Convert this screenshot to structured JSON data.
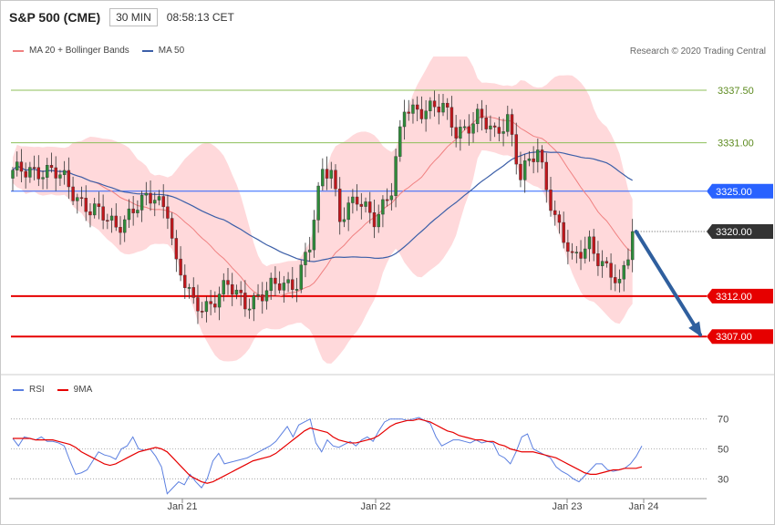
{
  "header": {
    "symbol": "S&P 500 (CME)",
    "timeframe": "30 MIN",
    "time": "08:58:13 CET"
  },
  "legend": {
    "bollinger_label": "MA 20 + Bollinger Bands",
    "ma50_label": "MA 50",
    "copyright": "Research © 2020 Trading Central"
  },
  "rsi_legend": {
    "rsi_label": "RSI",
    "ma_label": "9MA"
  },
  "colors": {
    "bull": "#2e8b3a",
    "bear": "#c0171c",
    "ma20": "#f08080",
    "band_fill": "#ffd9db",
    "ma50": "#3c5fa8",
    "resistance": "#8dbf5a",
    "support": "#e60000",
    "arrow": "#2f5f9e",
    "tag_blue": "#2962ff",
    "tag_dark": "#333333",
    "tag_red": "#e60000",
    "rsi": "#5b7fe0",
    "rsi_ma": "#e60000"
  },
  "chart_data": [
    {
      "type": "candlestick",
      "title": "",
      "x_labels": [
        "Jan 21",
        "Jan 22",
        "Jan 23",
        "Jan 24"
      ],
      "ylim": [
        3303.3,
        3341.0
      ],
      "price_levels": [
        {
          "value": 3337.5,
          "label": "3337.50",
          "kind": "resistance"
        },
        {
          "value": 3331.0,
          "label": "3331.00",
          "kind": "resistance"
        },
        {
          "value": 3325.0,
          "label": "3325.00",
          "kind": "ma50"
        },
        {
          "value": 3320.0,
          "label": "3320.00",
          "kind": "last"
        },
        {
          "value": 3312.0,
          "label": "3312.00",
          "kind": "support"
        },
        {
          "value": 3307.0,
          "label": "3307.00",
          "kind": "support"
        }
      ],
      "projection": {
        "from": 3320.0,
        "to": 3307.0
      },
      "anchors": [
        {
          "i": 0,
          "c": 3327.0
        },
        {
          "i": 4,
          "c": 3328.0
        },
        {
          "i": 12,
          "c": 3326.5
        },
        {
          "i": 18,
          "c": 3322.5
        },
        {
          "i": 20,
          "c": 3322.0
        },
        {
          "i": 24,
          "c": 3321.0
        },
        {
          "i": 28,
          "c": 3322.5
        },
        {
          "i": 33,
          "c": 3324.5
        },
        {
          "i": 36,
          "c": 3323.0
        },
        {
          "i": 38,
          "c": 3315.5
        },
        {
          "i": 42,
          "c": 3311.0
        },
        {
          "i": 46,
          "c": 3311.2
        },
        {
          "i": 50,
          "c": 3313.0
        },
        {
          "i": 54,
          "c": 3311.5
        },
        {
          "i": 58,
          "c": 3312.0
        },
        {
          "i": 62,
          "c": 3313.5
        },
        {
          "i": 66,
          "c": 3314.0
        },
        {
          "i": 69,
          "c": 3318.0
        },
        {
          "i": 72,
          "c": 3327.5
        },
        {
          "i": 74,
          "c": 3328.0
        },
        {
          "i": 76,
          "c": 3322.0
        },
        {
          "i": 80,
          "c": 3323.5
        },
        {
          "i": 84,
          "c": 3322.0
        },
        {
          "i": 88,
          "c": 3325.0
        },
        {
          "i": 91,
          "c": 3335.0
        },
        {
          "i": 96,
          "c": 3335.5
        },
        {
          "i": 100,
          "c": 3335.0
        },
        {
          "i": 103,
          "c": 3332.5
        },
        {
          "i": 108,
          "c": 3334.0
        },
        {
          "i": 112,
          "c": 3332.0
        },
        {
          "i": 115,
          "c": 3334.5
        },
        {
          "i": 118,
          "c": 3326.5
        },
        {
          "i": 122,
          "c": 3330.0
        },
        {
          "i": 126,
          "c": 3322.0
        },
        {
          "i": 130,
          "c": 3316.0
        },
        {
          "i": 134,
          "c": 3319.0
        },
        {
          "i": 138,
          "c": 3315.0
        },
        {
          "i": 141,
          "c": 3313.0
        },
        {
          "i": 144,
          "c": 3320.0
        }
      ],
      "series": [
        {
          "name": "MA 20 + Bollinger Bands",
          "kind": "ma20"
        },
        {
          "name": "MA 50",
          "kind": "ma50"
        }
      ]
    },
    {
      "type": "line",
      "title": "",
      "ylim": [
        18,
        82
      ],
      "y_ticks": [
        "70",
        "50",
        "30"
      ],
      "y_tick_values": [
        70,
        50,
        30
      ],
      "x_labels": [
        "Jan 21",
        "Jan 22",
        "Jan 23",
        "Jan 24"
      ],
      "series": [
        {
          "name": "RSI",
          "values": [
            57,
            52,
            58,
            57,
            56,
            58,
            55,
            55,
            54,
            52,
            42,
            33,
            34,
            36,
            42,
            48,
            46,
            45,
            43,
            50,
            52,
            58,
            50,
            49,
            50,
            45,
            38,
            20,
            24,
            28,
            26,
            33,
            28,
            24,
            30,
            42,
            47,
            40,
            41,
            42,
            43,
            44,
            46,
            48,
            50,
            52,
            55,
            60,
            65,
            58,
            66,
            68,
            70,
            54,
            48,
            56,
            52,
            51,
            53,
            55,
            52,
            56,
            58,
            55,
            62,
            68,
            70,
            70,
            70,
            69,
            70,
            71,
            69,
            67,
            58,
            52,
            54,
            56,
            56,
            55,
            54,
            56,
            54,
            55,
            54,
            46,
            44,
            40,
            48,
            58,
            60,
            50,
            48,
            46,
            44,
            38,
            35,
            33,
            30,
            28,
            32,
            36,
            40,
            40,
            36,
            35,
            36,
            37,
            40,
            45,
            52
          ]
        },
        {
          "name": "9MA",
          "values": [
            57,
            57,
            57,
            57,
            56,
            56,
            56,
            56,
            55,
            54,
            53,
            51,
            48,
            46,
            44,
            42,
            40,
            39,
            40,
            42,
            44,
            46,
            48,
            49,
            50,
            51,
            50,
            48,
            44,
            40,
            36,
            32,
            30,
            28,
            27,
            28,
            30,
            32,
            34,
            36,
            38,
            40,
            42,
            43,
            44,
            45,
            47,
            50,
            53,
            56,
            59,
            62,
            64,
            63,
            62,
            61,
            58,
            56,
            55,
            54,
            54,
            55,
            56,
            57,
            59,
            62,
            65,
            67,
            68,
            69,
            69,
            70,
            69,
            68,
            66,
            64,
            62,
            61,
            59,
            58,
            57,
            56,
            56,
            55,
            55,
            53,
            52,
            50,
            49,
            48,
            48,
            48,
            47,
            46,
            45,
            44,
            42,
            40,
            38,
            36,
            34,
            33,
            33,
            34,
            35,
            36,
            36,
            37,
            37,
            37,
            38
          ]
        }
      ]
    }
  ]
}
